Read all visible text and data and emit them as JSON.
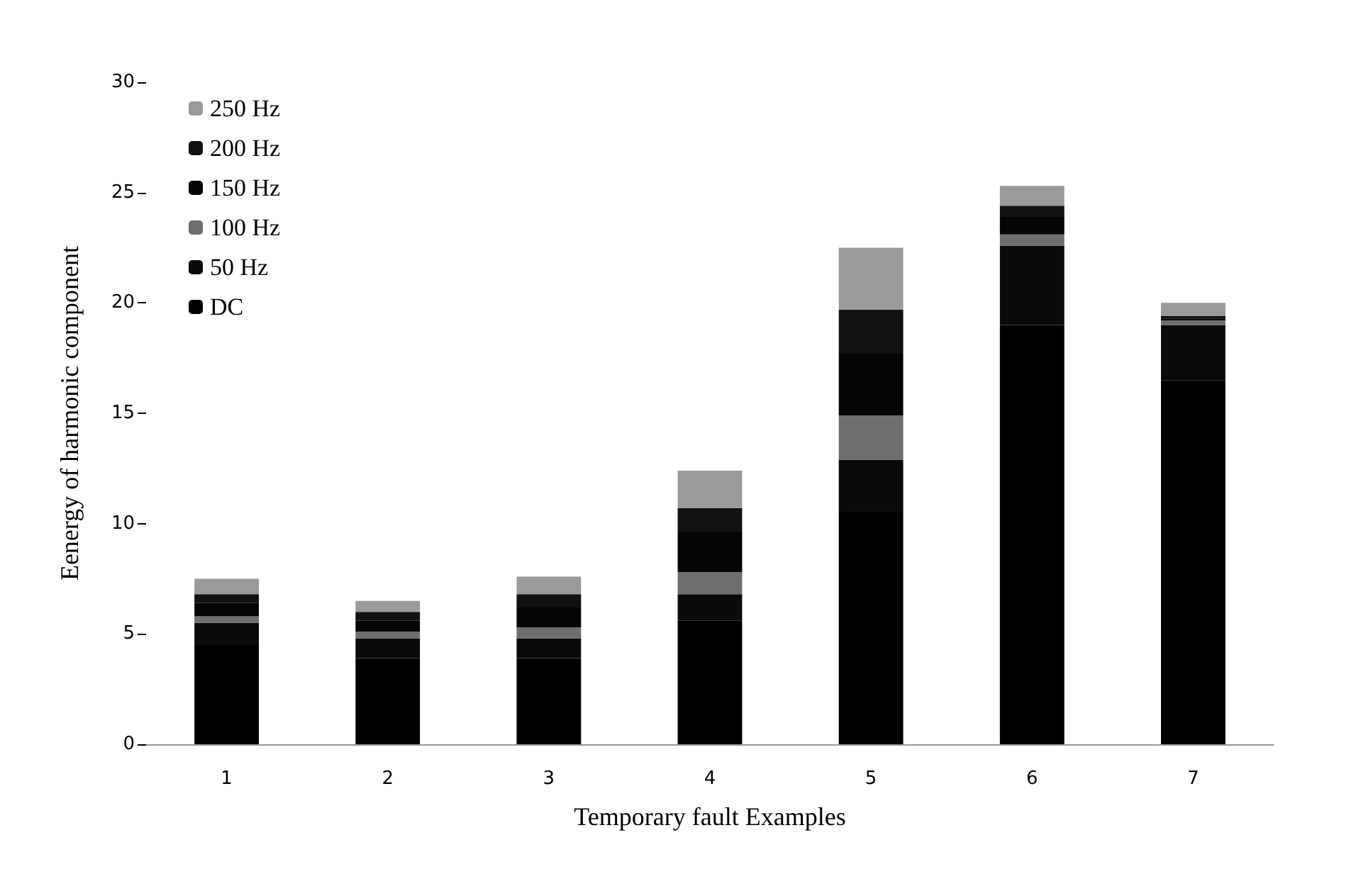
{
  "chart_data": {
    "type": "bar",
    "stacked": true,
    "xlabel": "Temporary fault Examples",
    "ylabel": "Eenergy of harmonic component",
    "categories": [
      "1",
      "2",
      "3",
      "4",
      "5",
      "6",
      "7"
    ],
    "series": [
      {
        "name": "DC",
        "color": "#000000",
        "values": [
          4.5,
          3.9,
          3.9,
          5.6,
          10.5,
          19.0,
          16.5
        ]
      },
      {
        "name": "50 Hz",
        "color": "#0a0a0a",
        "values": [
          1.0,
          0.9,
          0.9,
          1.2,
          2.4,
          3.6,
          2.5
        ]
      },
      {
        "name": "100 Hz",
        "color": "#6e6e6e",
        "values": [
          0.3,
          0.3,
          0.5,
          1.0,
          2.0,
          0.5,
          0.2
        ]
      },
      {
        "name": "150 Hz",
        "color": "#050505",
        "values": [
          0.6,
          0.5,
          0.9,
          1.8,
          2.8,
          0.8,
          0.1
        ]
      },
      {
        "name": "200 Hz",
        "color": "#111111",
        "values": [
          0.4,
          0.4,
          0.6,
          1.1,
          2.0,
          0.5,
          0.1
        ]
      },
      {
        "name": "250 Hz",
        "color": "#9a9a9a",
        "values": [
          0.7,
          0.5,
          0.8,
          1.7,
          2.8,
          0.9,
          0.6
        ]
      }
    ],
    "ylim": [
      0,
      30
    ],
    "yticks": [
      0,
      5,
      10,
      15,
      20,
      25,
      30
    ],
    "grid": false,
    "legend": "top left"
  }
}
